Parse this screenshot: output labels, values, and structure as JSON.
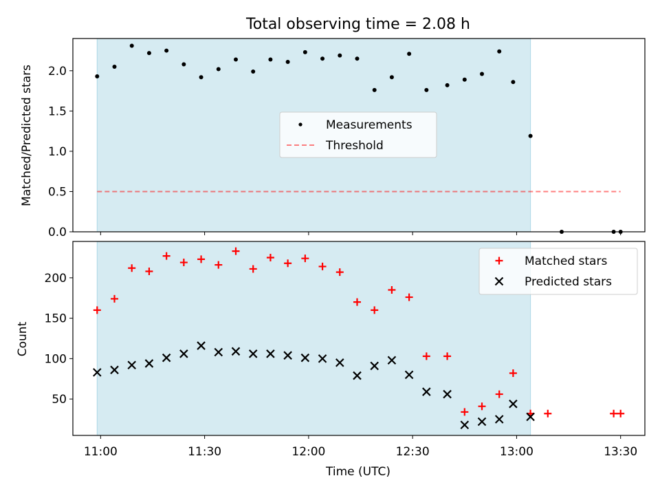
{
  "title": "Total observing time = 2.08 h",
  "colors": {
    "shade": "#add8e6",
    "measurement": "#000000",
    "threshold": "#ff0000",
    "matched": "#ff0000",
    "predicted": "#000000"
  },
  "chart_data": [
    {
      "type": "scatter",
      "ylabel": "Matched/Predicted stars",
      "ylim": [
        0,
        2.4
      ],
      "yticks": [
        "0.0",
        "0.5",
        "1.0",
        "1.5",
        "2.0"
      ],
      "xlim_min": [
        652,
        817
      ],
      "xticks_min": [
        660,
        690,
        720,
        750,
        780,
        810
      ],
      "shaded_span_min": [
        659,
        784
      ],
      "legend": {
        "placement": "center",
        "measurements_label": "Measurements",
        "threshold_label": "Threshold"
      },
      "threshold": {
        "value": 0.5,
        "x_min": [
          659,
          810
        ]
      },
      "series": [
        {
          "name": "Measurements",
          "x_min": [
            659,
            664,
            669,
            674,
            679,
            684,
            689,
            694,
            699,
            704,
            709,
            714,
            719,
            724,
            729,
            734,
            739,
            744,
            749,
            754,
            760,
            765,
            770,
            775,
            779,
            784,
            793,
            808,
            810
          ],
          "values": [
            1.93,
            2.05,
            2.31,
            2.22,
            2.25,
            2.08,
            1.92,
            2.02,
            2.14,
            1.99,
            2.14,
            2.11,
            2.23,
            2.15,
            2.19,
            2.15,
            1.76,
            1.92,
            2.21,
            1.76,
            1.82,
            1.89,
            1.96,
            2.24,
            1.86,
            1.19,
            0.0,
            0.0,
            0.0
          ]
        }
      ]
    },
    {
      "type": "scatter",
      "xlabel": "Time (UTC)",
      "ylabel": "Count",
      "ylim": [
        5,
        245
      ],
      "yticks": [
        "50",
        "100",
        "150",
        "200"
      ],
      "xlim_min": [
        652,
        817
      ],
      "xticks_min": [
        660,
        690,
        720,
        750,
        780,
        810
      ],
      "xtick_labels": [
        "11:00",
        "11:30",
        "12:00",
        "12:30",
        "13:00",
        "13:30"
      ],
      "shaded_span_min": [
        659,
        784
      ],
      "legend": {
        "placement": "top-right"
      },
      "series": [
        {
          "name": "Matched stars",
          "x_min": [
            659,
            664,
            669,
            674,
            679,
            684,
            689,
            694,
            699,
            704,
            709,
            714,
            719,
            724,
            729,
            734,
            739,
            744,
            749,
            754,
            760,
            765,
            770,
            775,
            779,
            784,
            789,
            808,
            810
          ],
          "values": [
            160,
            174,
            212,
            208,
            227,
            219,
            223,
            216,
            233,
            211,
            225,
            218,
            224,
            214,
            207,
            170,
            160,
            185,
            176,
            103,
            103,
            34,
            41,
            56,
            82,
            32,
            32,
            32,
            32
          ]
        },
        {
          "name": "Predicted stars",
          "x_min": [
            659,
            664,
            669,
            674,
            679,
            684,
            689,
            694,
            699,
            704,
            709,
            714,
            719,
            724,
            729,
            734,
            739,
            744,
            749,
            754,
            760,
            765,
            770,
            775,
            779,
            784
          ],
          "values": [
            83,
            86,
            92,
            94,
            101,
            106,
            116,
            108,
            109,
            106,
            106,
            104,
            101,
            100,
            95,
            79,
            91,
            98,
            80,
            59,
            56,
            18,
            22,
            25,
            44,
            28
          ]
        }
      ]
    }
  ]
}
